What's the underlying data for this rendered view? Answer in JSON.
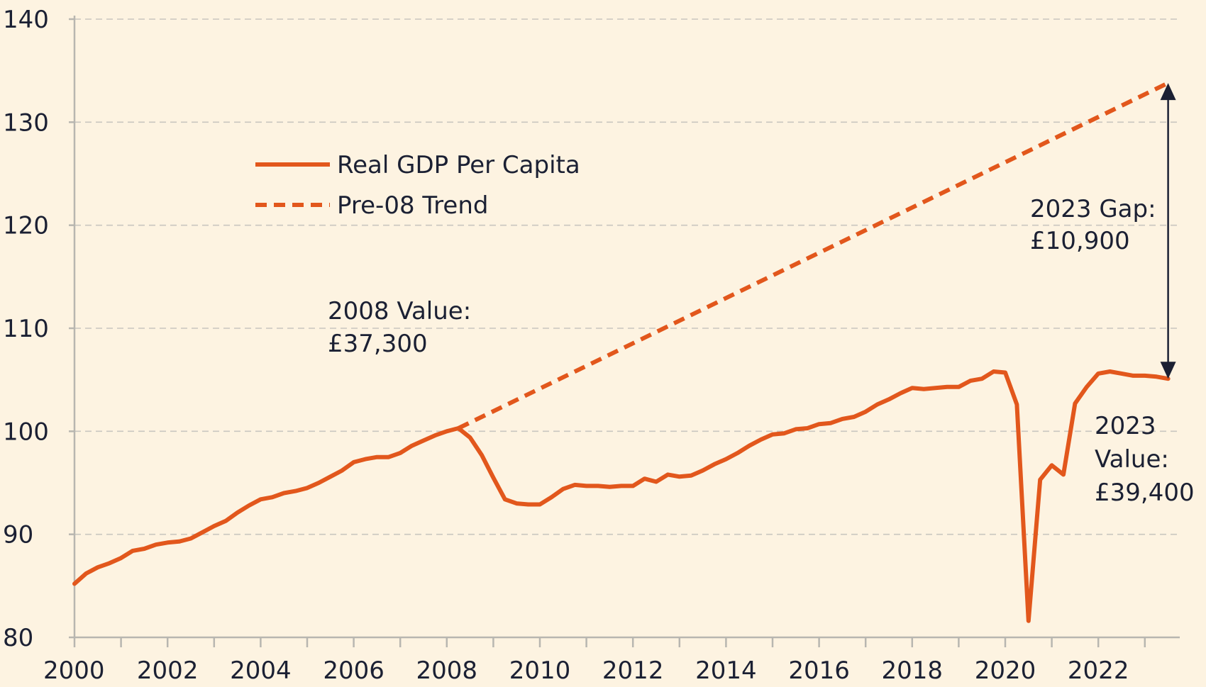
{
  "chart_data": {
    "type": "line",
    "title": "",
    "xlabel": "",
    "ylabel": "",
    "xlim": [
      2000,
      2023.75
    ],
    "ylim": [
      80,
      140
    ],
    "yticks": [
      80,
      90,
      100,
      110,
      120,
      130,
      140
    ],
    "xticks": [
      2000,
      2002,
      2004,
      2006,
      2008,
      2010,
      2012,
      2014,
      2016,
      2018,
      2020,
      2022
    ],
    "grid": true,
    "legend_placement": "top-left",
    "colors": {
      "series": "#e2571c",
      "arrow": "#1b2033",
      "text": "#1b2033",
      "background": "#fdf3e1"
    },
    "series": [
      {
        "name": "Real GDP Per Capita",
        "style": "solid",
        "x": [
          2000.0,
          2000.25,
          2000.5,
          2000.75,
          2001.0,
          2001.25,
          2001.5,
          2001.75,
          2002.0,
          2002.25,
          2002.5,
          2002.75,
          2003.0,
          2003.25,
          2003.5,
          2003.75,
          2004.0,
          2004.25,
          2004.5,
          2004.75,
          2005.0,
          2005.25,
          2005.5,
          2005.75,
          2006.0,
          2006.25,
          2006.5,
          2006.75,
          2007.0,
          2007.25,
          2007.5,
          2007.75,
          2008.0,
          2008.25,
          2008.5,
          2008.75,
          2009.0,
          2009.25,
          2009.5,
          2009.75,
          2010.0,
          2010.25,
          2010.5,
          2010.75,
          2011.0,
          2011.25,
          2011.5,
          2011.75,
          2012.0,
          2012.25,
          2012.5,
          2012.75,
          2013.0,
          2013.25,
          2013.5,
          2013.75,
          2014.0,
          2014.25,
          2014.5,
          2014.75,
          2015.0,
          2015.25,
          2015.5,
          2015.75,
          2016.0,
          2016.25,
          2016.5,
          2016.75,
          2017.0,
          2017.25,
          2017.5,
          2017.75,
          2018.0,
          2018.25,
          2018.5,
          2018.75,
          2019.0,
          2019.25,
          2019.5,
          2019.75,
          2020.0,
          2020.25,
          2020.5,
          2020.75,
          2021.0,
          2021.25,
          2021.5,
          2021.75,
          2022.0,
          2022.25,
          2022.5,
          2022.75,
          2023.0,
          2023.25,
          2023.5
        ],
        "values": [
          85.2,
          86.2,
          86.8,
          87.2,
          87.7,
          88.4,
          88.6,
          89.0,
          89.2,
          89.3,
          89.6,
          90.2,
          90.8,
          91.3,
          92.1,
          92.8,
          93.4,
          93.6,
          94.0,
          94.2,
          94.5,
          95.0,
          95.6,
          96.2,
          97.0,
          97.3,
          97.5,
          97.5,
          97.9,
          98.6,
          99.1,
          99.6,
          100.0,
          100.3,
          99.4,
          97.7,
          95.5,
          93.4,
          93.0,
          92.9,
          92.9,
          93.6,
          94.4,
          94.8,
          94.7,
          94.7,
          94.6,
          94.7,
          94.7,
          95.4,
          95.1,
          95.8,
          95.6,
          95.7,
          96.2,
          96.8,
          97.3,
          97.9,
          98.6,
          99.2,
          99.7,
          99.8,
          100.2,
          100.3,
          100.7,
          100.8,
          101.2,
          101.4,
          101.9,
          102.6,
          103.1,
          103.7,
          104.2,
          104.1,
          104.2,
          104.3,
          104.3,
          104.9,
          105.1,
          105.8,
          105.7,
          102.6,
          81.6,
          95.3,
          96.7,
          95.8,
          102.7,
          104.3,
          105.6,
          105.8,
          105.6,
          105.4,
          105.4,
          105.3,
          105.1
        ]
      },
      {
        "name": "Pre-08 Trend",
        "style": "dashed",
        "x": [
          2008.25,
          2023.5
        ],
        "values": [
          100.3,
          133.8
        ]
      }
    ],
    "annotations": [
      {
        "id": "value-2008",
        "lines": [
          "2008 Value:",
          "£37,300"
        ]
      },
      {
        "id": "gap-2023",
        "lines": [
          "2023 Gap:",
          "£10,900"
        ]
      },
      {
        "id": "value-2023",
        "lines": [
          "2023",
          "Value:",
          "£39,400"
        ]
      }
    ],
    "gap_arrow": {
      "x": 2023.5,
      "from": 105.1,
      "to": 133.8
    }
  }
}
